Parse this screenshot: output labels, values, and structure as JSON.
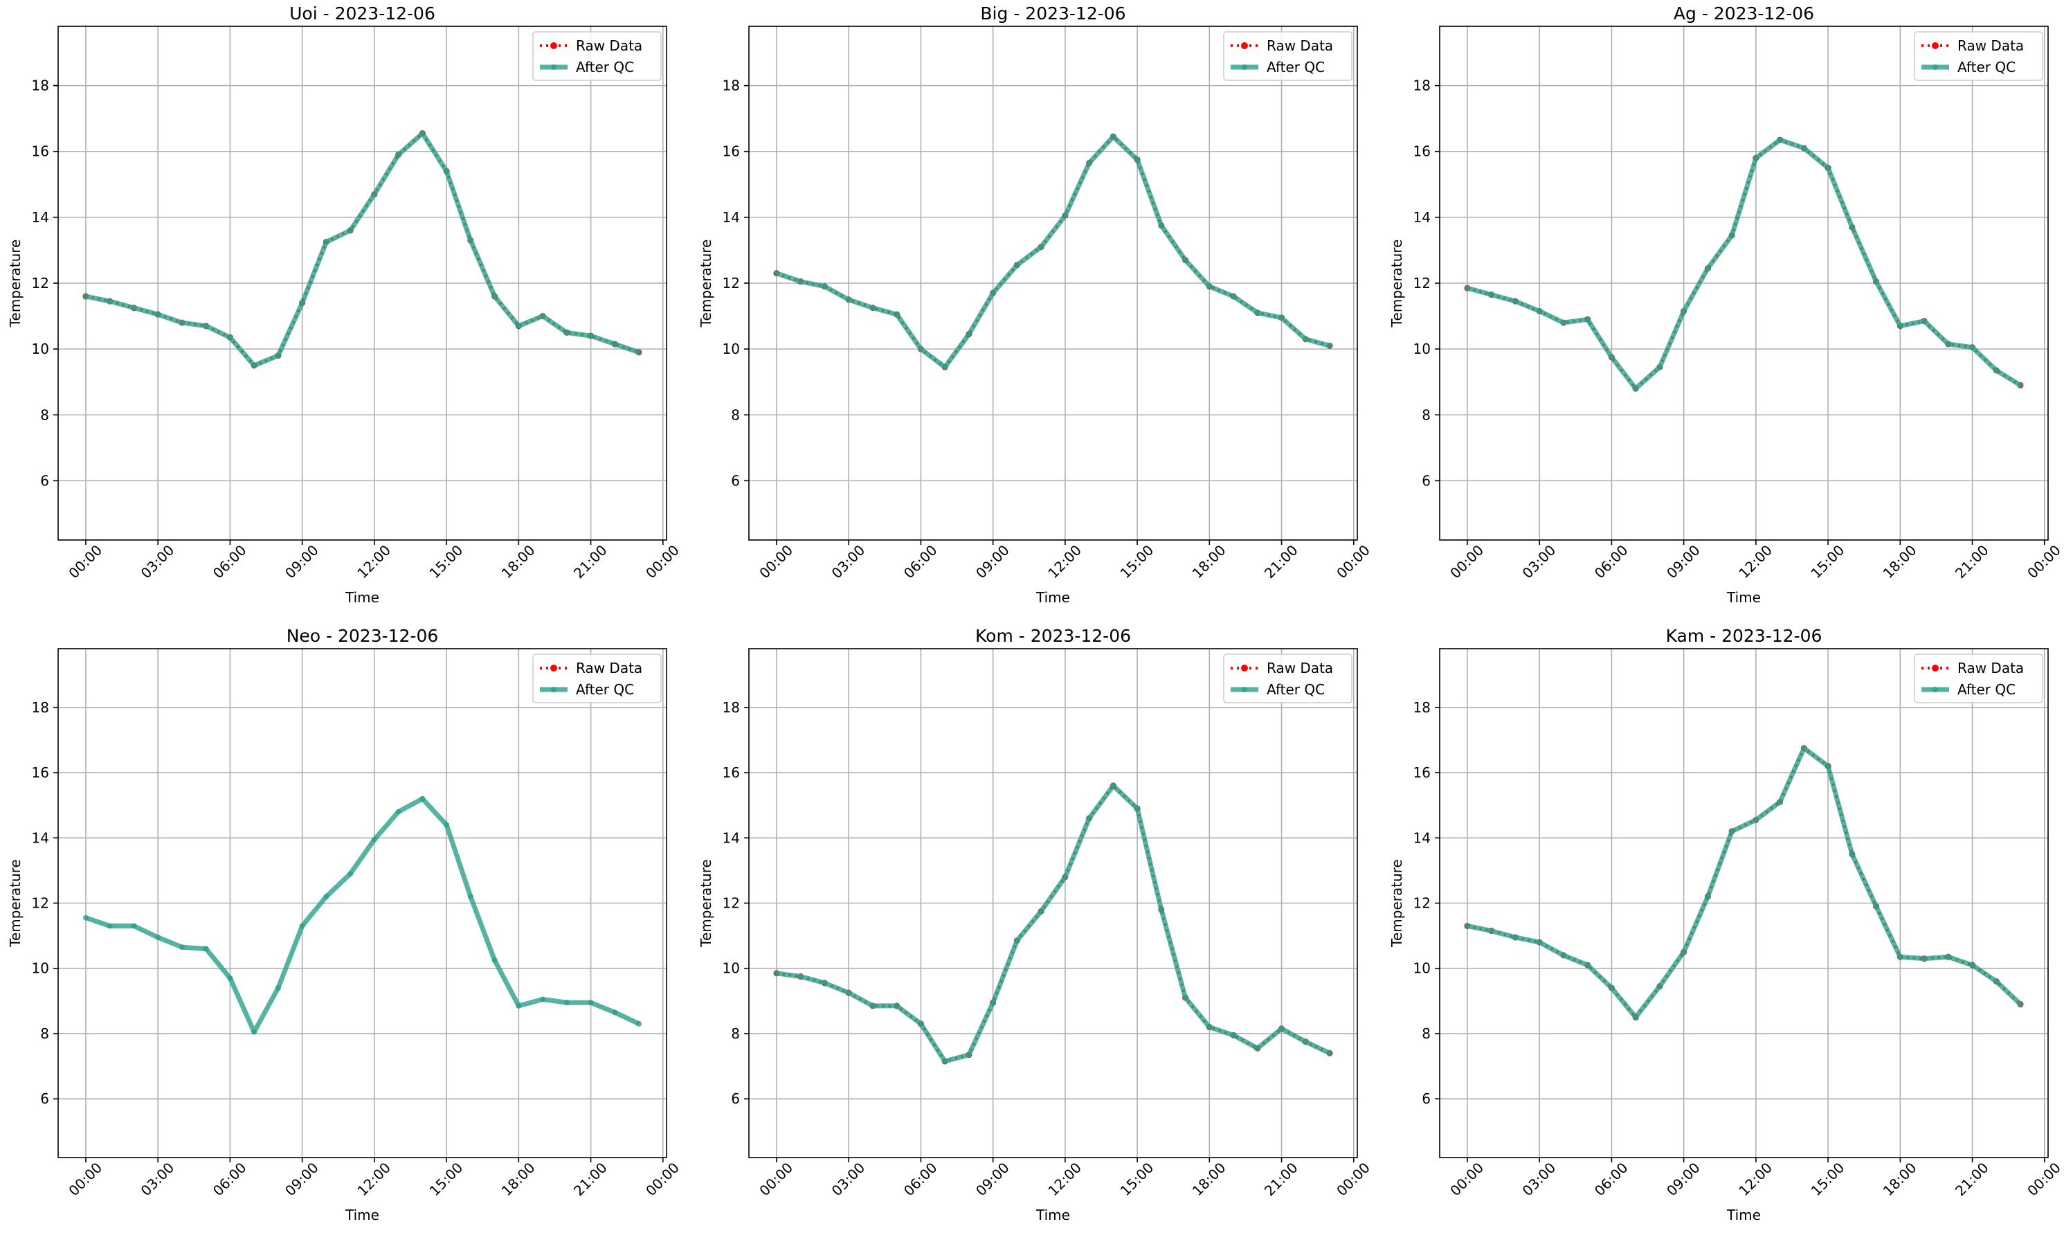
{
  "chart_data": [
    {
      "type": "line",
      "title": "Uoi - 2023-12-06",
      "xlabel": "Time",
      "ylabel": "Temperature",
      "x": [
        0,
        1,
        2,
        3,
        4,
        5,
        6,
        7,
        8,
        9,
        10,
        11,
        12,
        13,
        14,
        15,
        16,
        17,
        18,
        19,
        20,
        21,
        22,
        23
      ],
      "series": [
        {
          "name": "Raw Data",
          "color": "#ff0000",
          "values": [
            11.6,
            11.45,
            11.25,
            11.05,
            10.8,
            10.7,
            10.35,
            9.5,
            9.8,
            11.4,
            13.25,
            13.6,
            14.7,
            15.9,
            16.55,
            15.4,
            13.3,
            11.6,
            10.7,
            11.0,
            10.5,
            10.4,
            10.15,
            9.9
          ]
        },
        {
          "name": "After QC",
          "color": "#2ca089",
          "values": [
            11.6,
            11.45,
            11.25,
            11.05,
            10.8,
            10.7,
            10.35,
            9.5,
            9.8,
            11.4,
            13.25,
            13.6,
            14.7,
            15.9,
            16.55,
            15.4,
            13.3,
            11.6,
            10.7,
            11.0,
            10.5,
            10.4,
            10.15,
            9.9
          ]
        }
      ],
      "xlim": [
        -1.15,
        24.15
      ],
      "xticks": [
        {
          "value": 0,
          "label": "00:00"
        },
        {
          "value": 3,
          "label": "03:00"
        },
        {
          "value": 6,
          "label": "06:00"
        },
        {
          "value": 9,
          "label": "09:00"
        },
        {
          "value": 12,
          "label": "12:00"
        },
        {
          "value": 15,
          "label": "15:00"
        },
        {
          "value": 18,
          "label": "18:00"
        },
        {
          "value": 21,
          "label": "21:00"
        },
        {
          "value": 24,
          "label": "00:00"
        }
      ],
      "ylim": [
        4.2,
        19.8
      ],
      "yticks": [
        6,
        8,
        10,
        12,
        14,
        16,
        18
      ],
      "grid": true,
      "legend": "upper right"
    },
    {
      "type": "line",
      "title": "Big - 2023-12-06",
      "xlabel": "Time",
      "ylabel": "Temperature",
      "x": [
        0,
        1,
        2,
        3,
        4,
        5,
        6,
        7,
        8,
        9,
        10,
        11,
        12,
        13,
        14,
        15,
        16,
        17,
        18,
        19,
        20,
        21,
        22,
        23
      ],
      "series": [
        {
          "name": "Raw Data",
          "color": "#ff0000",
          "values": [
            12.3,
            12.05,
            11.9,
            11.5,
            11.25,
            11.05,
            10.0,
            9.45,
            10.45,
            11.7,
            12.55,
            13.1,
            14.05,
            15.65,
            16.45,
            15.75,
            13.75,
            12.7,
            11.9,
            11.6,
            11.1,
            10.95,
            10.3,
            10.1
          ]
        },
        {
          "name": "After QC",
          "color": "#2ca089",
          "values": [
            12.3,
            12.05,
            11.9,
            11.5,
            11.25,
            11.05,
            10.0,
            9.45,
            10.45,
            11.7,
            12.55,
            13.1,
            14.05,
            15.65,
            16.45,
            15.75,
            13.75,
            12.7,
            11.9,
            11.6,
            11.1,
            10.95,
            10.3,
            10.1
          ]
        }
      ],
      "xlim": [
        -1.15,
        24.15
      ],
      "xticks": [
        {
          "value": 0,
          "label": "00:00"
        },
        {
          "value": 3,
          "label": "03:00"
        },
        {
          "value": 6,
          "label": "06:00"
        },
        {
          "value": 9,
          "label": "09:00"
        },
        {
          "value": 12,
          "label": "12:00"
        },
        {
          "value": 15,
          "label": "15:00"
        },
        {
          "value": 18,
          "label": "18:00"
        },
        {
          "value": 21,
          "label": "21:00"
        },
        {
          "value": 24,
          "label": "00:00"
        }
      ],
      "ylim": [
        4.2,
        19.8
      ],
      "yticks": [
        6,
        8,
        10,
        12,
        14,
        16,
        18
      ],
      "grid": true,
      "legend": "upper right"
    },
    {
      "type": "line",
      "title": "Ag - 2023-12-06",
      "xlabel": "Time",
      "ylabel": "Temperature",
      "x": [
        0,
        1,
        2,
        3,
        4,
        5,
        6,
        7,
        8,
        9,
        10,
        11,
        12,
        13,
        14,
        15,
        16,
        17,
        18,
        19,
        20,
        21,
        22,
        23
      ],
      "series": [
        {
          "name": "Raw Data",
          "color": "#ff0000",
          "values": [
            11.85,
            11.65,
            11.45,
            11.15,
            10.8,
            10.9,
            9.75,
            8.8,
            9.45,
            11.15,
            12.45,
            13.45,
            15.8,
            16.35,
            16.1,
            15.5,
            13.7,
            12.05,
            10.7,
            10.85,
            10.15,
            10.05,
            9.35,
            8.9
          ]
        },
        {
          "name": "After QC",
          "color": "#2ca089",
          "values": [
            11.85,
            11.65,
            11.45,
            11.15,
            10.8,
            10.9,
            9.75,
            8.8,
            9.45,
            11.15,
            12.45,
            13.45,
            15.8,
            16.35,
            16.1,
            15.5,
            13.7,
            12.05,
            10.7,
            10.85,
            10.15,
            10.05,
            9.35,
            8.9
          ]
        }
      ],
      "xlim": [
        -1.15,
        24.15
      ],
      "xticks": [
        {
          "value": 0,
          "label": "00:00"
        },
        {
          "value": 3,
          "label": "03:00"
        },
        {
          "value": 6,
          "label": "06:00"
        },
        {
          "value": 9,
          "label": "09:00"
        },
        {
          "value": 12,
          "label": "12:00"
        },
        {
          "value": 15,
          "label": "15:00"
        },
        {
          "value": 18,
          "label": "18:00"
        },
        {
          "value": 21,
          "label": "21:00"
        },
        {
          "value": 24,
          "label": "00:00"
        }
      ],
      "ylim": [
        4.2,
        19.8
      ],
      "yticks": [
        6,
        8,
        10,
        12,
        14,
        16,
        18
      ],
      "grid": true,
      "legend": "upper right"
    },
    {
      "type": "line",
      "title": "Neo - 2023-12-06",
      "xlabel": "Time",
      "ylabel": "Temperature",
      "x": [
        0,
        1,
        2,
        3,
        4,
        5,
        6,
        7,
        8,
        9,
        10,
        11,
        12,
        13,
        14,
        15,
        16,
        17,
        18,
        19,
        20,
        21,
        22,
        23
      ],
      "series": [
        {
          "name": "Raw Data",
          "color": "#ff0000",
          "values": [
            null,
            null,
            null,
            null,
            null,
            null,
            null,
            null,
            null,
            null,
            null,
            null,
            null,
            null,
            null,
            null,
            null,
            null,
            null,
            null,
            null,
            null,
            null,
            null
          ]
        },
        {
          "name": "After QC",
          "color": "#2ca089",
          "values": [
            11.55,
            11.3,
            11.3,
            10.95,
            10.65,
            10.6,
            9.7,
            8.05,
            9.4,
            11.3,
            12.2,
            12.9,
            13.95,
            14.8,
            15.2,
            14.4,
            12.2,
            10.25,
            8.85,
            9.05,
            8.95,
            8.95,
            8.65,
            8.3
          ]
        }
      ],
      "xlim": [
        -1.15,
        24.15
      ],
      "xticks": [
        {
          "value": 0,
          "label": "00:00"
        },
        {
          "value": 3,
          "label": "03:00"
        },
        {
          "value": 6,
          "label": "06:00"
        },
        {
          "value": 9,
          "label": "09:00"
        },
        {
          "value": 12,
          "label": "12:00"
        },
        {
          "value": 15,
          "label": "15:00"
        },
        {
          "value": 18,
          "label": "18:00"
        },
        {
          "value": 21,
          "label": "21:00"
        },
        {
          "value": 24,
          "label": "00:00"
        }
      ],
      "ylim": [
        4.2,
        19.8
      ],
      "yticks": [
        6,
        8,
        10,
        12,
        14,
        16,
        18
      ],
      "grid": true,
      "legend": "upper right"
    },
    {
      "type": "line",
      "title": "Kom - 2023-12-06",
      "xlabel": "Time",
      "ylabel": "Temperature",
      "x": [
        0,
        1,
        2,
        3,
        4,
        5,
        6,
        7,
        8,
        9,
        10,
        11,
        12,
        13,
        14,
        15,
        16,
        17,
        18,
        19,
        20,
        21,
        22,
        23
      ],
      "series": [
        {
          "name": "Raw Data",
          "color": "#ff0000",
          "values": [
            9.85,
            9.75,
            9.55,
            9.25,
            8.85,
            8.85,
            8.3,
            7.15,
            7.35,
            8.95,
            10.85,
            11.75,
            12.8,
            14.6,
            15.6,
            14.9,
            11.8,
            9.1,
            8.2,
            7.95,
            7.55,
            8.15,
            7.75,
            7.4
          ]
        },
        {
          "name": "After QC",
          "color": "#2ca089",
          "values": [
            9.85,
            9.75,
            9.55,
            9.25,
            8.85,
            8.85,
            8.3,
            7.15,
            7.35,
            8.95,
            10.85,
            11.75,
            12.8,
            14.6,
            15.6,
            14.9,
            11.8,
            9.1,
            8.2,
            7.95,
            7.55,
            8.15,
            7.75,
            7.4
          ]
        }
      ],
      "xlim": [
        -1.15,
        24.15
      ],
      "xticks": [
        {
          "value": 0,
          "label": "00:00"
        },
        {
          "value": 3,
          "label": "03:00"
        },
        {
          "value": 6,
          "label": "06:00"
        },
        {
          "value": 9,
          "label": "09:00"
        },
        {
          "value": 12,
          "label": "12:00"
        },
        {
          "value": 15,
          "label": "15:00"
        },
        {
          "value": 18,
          "label": "18:00"
        },
        {
          "value": 21,
          "label": "21:00"
        },
        {
          "value": 24,
          "label": "00:00"
        }
      ],
      "ylim": [
        4.2,
        19.8
      ],
      "yticks": [
        6,
        8,
        10,
        12,
        14,
        16,
        18
      ],
      "grid": true,
      "legend": "upper right"
    },
    {
      "type": "line",
      "title": "Kam - 2023-12-06",
      "xlabel": "Time",
      "ylabel": "Temperature",
      "x": [
        0,
        1,
        2,
        3,
        4,
        5,
        6,
        7,
        8,
        9,
        10,
        11,
        12,
        13,
        14,
        15,
        16,
        17,
        18,
        19,
        20,
        21,
        22,
        23
      ],
      "series": [
        {
          "name": "Raw Data",
          "color": "#ff0000",
          "values": [
            11.3,
            11.15,
            10.95,
            10.8,
            10.4,
            10.1,
            9.4,
            8.5,
            9.45,
            10.5,
            12.2,
            14.2,
            14.55,
            15.1,
            16.75,
            16.2,
            13.5,
            11.9,
            10.35,
            10.3,
            10.35,
            10.1,
            9.6,
            8.9
          ]
        },
        {
          "name": "After QC",
          "color": "#2ca089",
          "values": [
            11.3,
            11.15,
            10.95,
            10.8,
            10.4,
            10.1,
            9.4,
            8.5,
            9.45,
            10.5,
            12.2,
            14.2,
            14.55,
            15.1,
            16.75,
            16.2,
            13.5,
            11.9,
            10.35,
            10.3,
            10.35,
            10.1,
            9.6,
            8.9
          ]
        }
      ],
      "xlim": [
        -1.15,
        24.15
      ],
      "xticks": [
        {
          "value": 0,
          "label": "00:00"
        },
        {
          "value": 3,
          "label": "03:00"
        },
        {
          "value": 6,
          "label": "06:00"
        },
        {
          "value": 9,
          "label": "09:00"
        },
        {
          "value": 12,
          "label": "12:00"
        },
        {
          "value": 15,
          "label": "15:00"
        },
        {
          "value": 18,
          "label": "18:00"
        },
        {
          "value": 21,
          "label": "21:00"
        },
        {
          "value": 24,
          "label": "00:00"
        }
      ],
      "ylim": [
        4.2,
        19.8
      ],
      "yticks": [
        6,
        8,
        10,
        12,
        14,
        16,
        18
      ],
      "grid": true,
      "legend": "upper right"
    }
  ]
}
